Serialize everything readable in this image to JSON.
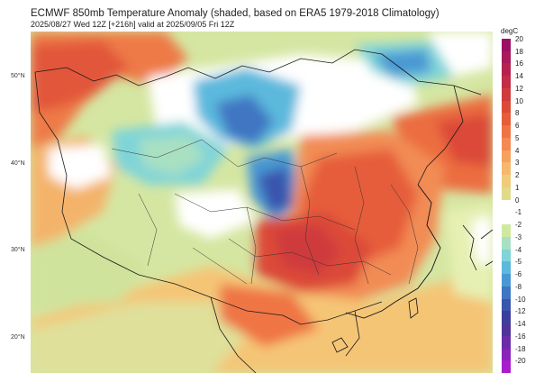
{
  "header": {
    "title": "ECMWF 850mb Temperature Anomaly (shaded, based on ERA5 1979-2018 Climatology)",
    "subtitle": "2025/08/27 Wed 12Z [+216h] valid at 2025/09/05 Fri 12Z"
  },
  "lat_labels": [
    "50°N",
    "40°N",
    "30°N",
    "20°N"
  ],
  "colorbar": {
    "unit": "degC",
    "ticks": [
      "20",
      "18",
      "16",
      "14",
      "12",
      "10",
      "8",
      "6",
      "5",
      "4",
      "3",
      "2",
      "1",
      "0",
      "-1",
      "-2",
      "-3",
      "-4",
      "-5",
      "-6",
      "-8",
      "-10",
      "-12",
      "-14",
      "-16",
      "-18",
      "-20"
    ],
    "colors": [
      "#9b1064",
      "#a8185a",
      "#b52250",
      "#c22d47",
      "#cf3b3d",
      "#dc4a38",
      "#e65d3a",
      "#ef7444",
      "#f48a51",
      "#f6a15e",
      "#f5b86c",
      "#efcc7a",
      "#e1da88",
      "#ffffff",
      "#ffffff",
      "#cfeaa0",
      "#a9e0c2",
      "#7fd4d8",
      "#5bb9dd",
      "#4a98d3",
      "#3f76c2",
      "#3a55ae",
      "#3b3e9c",
      "#4e3498",
      "#6a2ca7",
      "#8a22b9",
      "#a91ccc"
    ]
  }
}
